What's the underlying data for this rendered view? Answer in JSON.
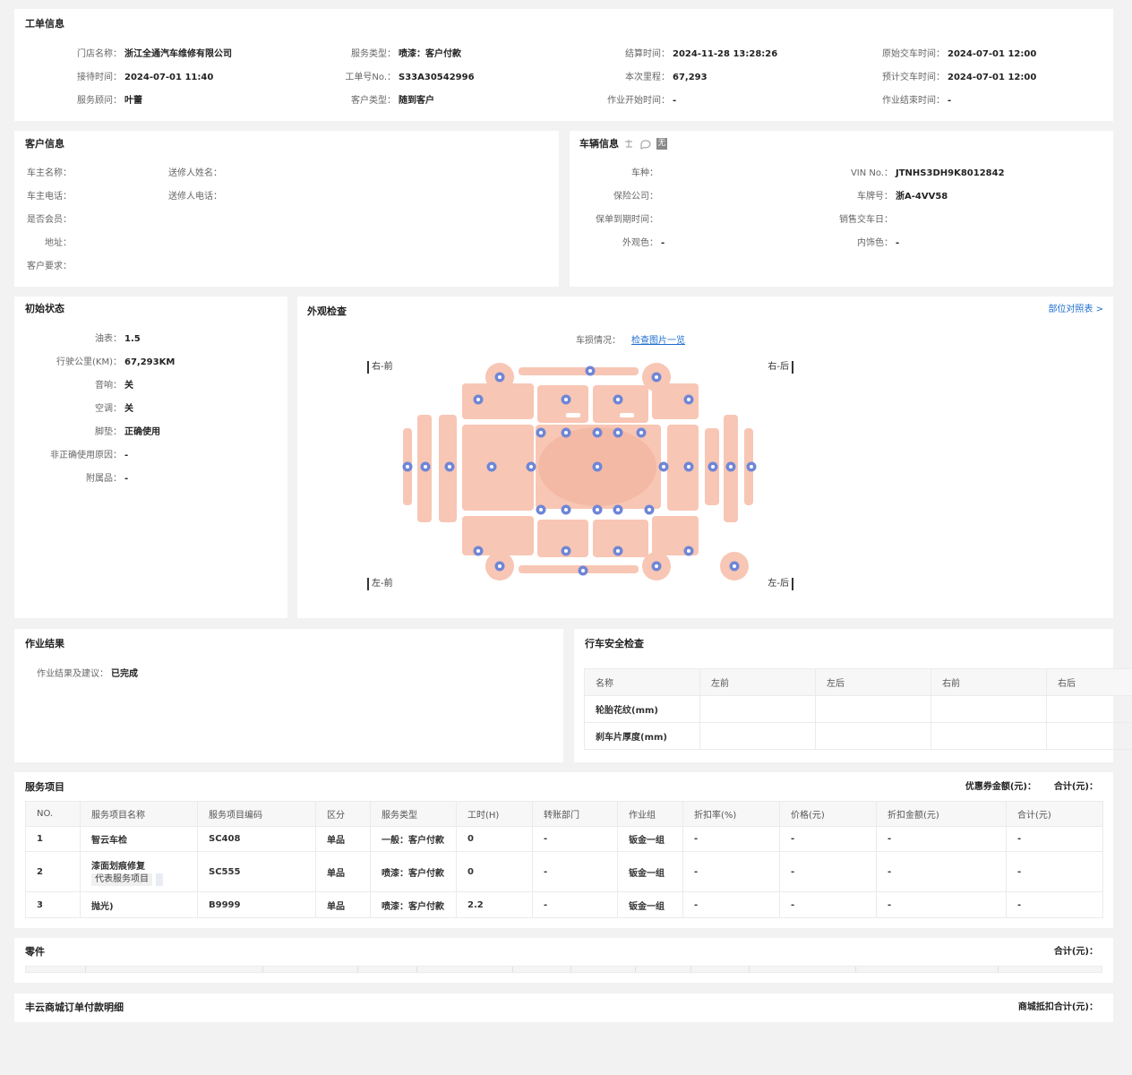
{
  "work_order": {
    "title": "工单信息",
    "fields": [
      {
        "label": "门店名称：",
        "value": "浙江全通汽车维修有限公司"
      },
      {
        "label": "服务类型：",
        "value": "喷漆：客户付款"
      },
      {
        "label": "结算时间：",
        "value": "2024-11-28 13:28:26"
      },
      {
        "label": "原始交车时间：",
        "value": "2024-07-01 12:00"
      },
      {
        "label": "接待时间：",
        "value": "2024-07-01 11:40"
      },
      {
        "label": "工单号No.：",
        "value": "S33A30542996"
      },
      {
        "label": "本次里程：",
        "value": "67,293"
      },
      {
        "label": "预计交车时间：",
        "value": "2024-07-01 12:00"
      },
      {
        "label": "服务顾问：",
        "value": "叶蕾"
      },
      {
        "label": "客户类型：",
        "value": "随到客户"
      },
      {
        "label": "作业开始时间：",
        "value": "-"
      },
      {
        "label": "作业结束时间：",
        "value": "-"
      }
    ]
  },
  "customer": {
    "title": "客户信息",
    "fields": [
      {
        "label": "车主名称："
      },
      {
        "label": "送修人姓名："
      },
      {
        "label": "车主电话："
      },
      {
        "label": "送修人电话："
      },
      {
        "label": "是否会员："
      },
      {
        "label": "地址："
      },
      {
        "label": "客户要求："
      }
    ]
  },
  "vehicle": {
    "title": "车辆信息",
    "badge": "无",
    "fields": [
      {
        "label": "车种："
      },
      {
        "label": "VIN No.：",
        "value": "JTNHS3DH9K8012842"
      },
      {
        "label": "保险公司："
      },
      {
        "label": "车牌号：",
        "value": "浙A-4VV58"
      },
      {
        "label": "保单到期时间："
      },
      {
        "label": "销售交车日："
      },
      {
        "label": "外观色：",
        "value": "-"
      },
      {
        "label": "内饰色：",
        "value": "-"
      }
    ]
  },
  "initial_state": {
    "title": "初始状态",
    "fields": [
      {
        "label": "油表：",
        "value": "1.5"
      },
      {
        "label": "行驶公里(KM)：",
        "value": "67,293KM"
      },
      {
        "label": "音响：",
        "value": "关"
      },
      {
        "label": "空调：",
        "value": "关"
      },
      {
        "label": "脚垫：",
        "value": "正确使用"
      },
      {
        "label": "非正确使用原因：",
        "value": "-"
      },
      {
        "label": "附属品：",
        "value": "-"
      }
    ]
  },
  "appearance": {
    "title": "外观检查",
    "reference_link": "部位对照表 >",
    "damage_label": "车损情况：",
    "photos_link": "检查图片一览",
    "corners": [
      "右-前",
      "右-后",
      "左-前",
      "左-后"
    ]
  },
  "work_result": {
    "title": "作业结果",
    "fields": [
      {
        "label": "作业结果及建议：",
        "value": "已完成"
      }
    ]
  },
  "safety_check": {
    "title": "行车安全检查",
    "table": {
      "header": [
        "名称",
        "左前",
        "左后",
        "右前",
        "右后"
      ],
      "rows": [
        [
          "轮胎花纹(mm)"
        ],
        [
          "刹车片厚度(mm)"
        ]
      ]
    }
  },
  "service_items": {
    "title": "服务项目",
    "coupon_label": "优惠券金额(元)：",
    "total_label": "合计(元)：",
    "table": {
      "header": [
        "NO.",
        "服务项目名称",
        "服务项目编码",
        "区分",
        "服务类型",
        "工时(H)",
        "转账部门",
        "作业组",
        "折扣率(%)",
        "价格(元)",
        "折扣金额(元)",
        "合计(元)"
      ],
      "rows": [
        {
          "cells": [
            "1",
            "智云车检",
            "SC408",
            "单品",
            "一般：客户付款",
            "0",
            "-",
            "钣金一组",
            "-",
            "-",
            "-",
            "-"
          ]
        },
        {
          "cells": [
            "2",
            "漆面划痕修复",
            "SC555",
            "单品",
            "喷漆：客户付款",
            "0",
            "-",
            "钣金一组",
            "-",
            "-",
            "-",
            "-"
          ],
          "tag": "代表服务项目"
        },
        {
          "cells": [
            "3",
            "抛光)",
            "B9999",
            "单品",
            "喷漆：客户付款",
            "2.2",
            "-",
            "钣金一组",
            "-",
            "-",
            "-",
            "-"
          ]
        }
      ]
    }
  },
  "parts": {
    "title": "零件",
    "total_label": "合计(元)："
  },
  "mall": {
    "title": "丰云商城订单付款明细",
    "total_label": "商城抵扣合计(元)："
  }
}
